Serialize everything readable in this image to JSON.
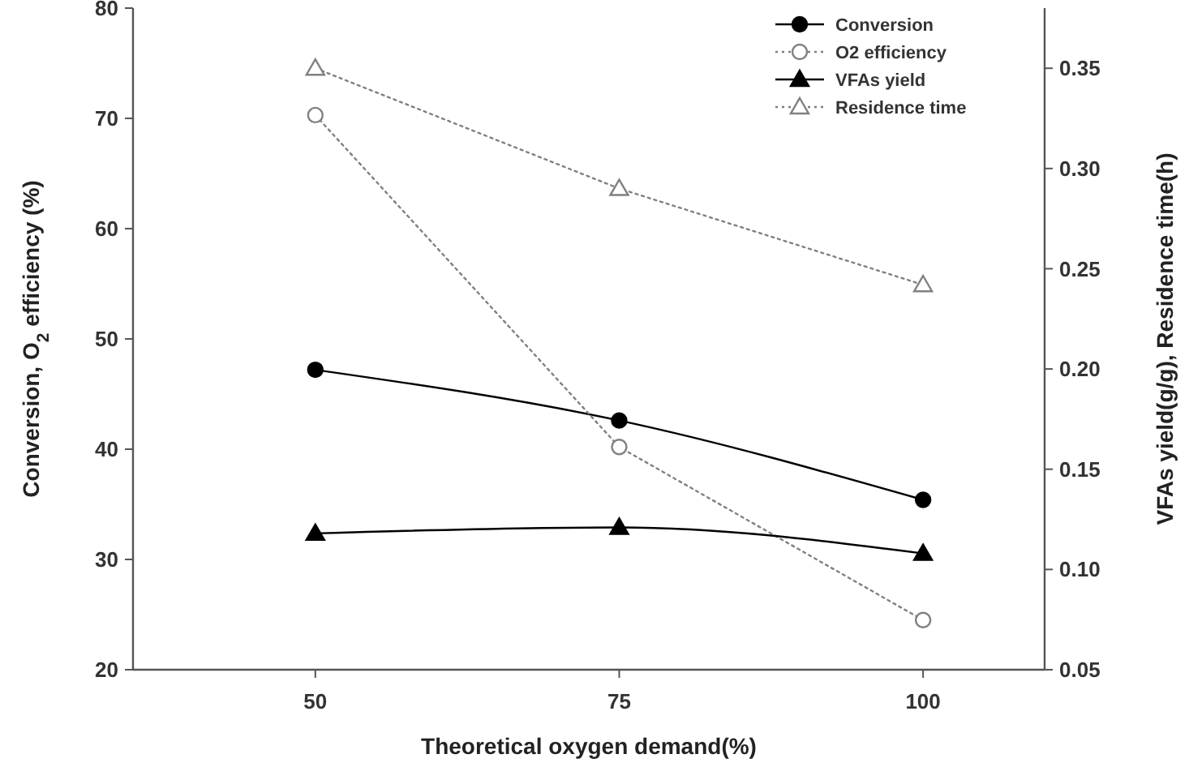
{
  "chart_data": {
    "type": "line",
    "xlabel": "Theoretical oxygen demand(%)",
    "ylabel": "Conversion, O$_{2}$ efficiency (%)",
    "y2label": "VFAs yield(g/g), Residence time(h)",
    "x": [
      50,
      75,
      100
    ],
    "xlim": [
      35,
      110
    ],
    "xticks": [
      50,
      75,
      100
    ],
    "ylim": [
      20,
      80
    ],
    "yticks": [
      20,
      30,
      40,
      50,
      60,
      70,
      80
    ],
    "y2lim": [
      0.05,
      0.38
    ],
    "y2ticks": [
      0.05,
      {
        "value": 0.1,
        "label": "0.10"
      },
      0.15,
      {
        "value": 0.2,
        "label": "0.20"
      },
      0.25,
      {
        "value": 0.3,
        "label": "0.30"
      },
      0.35
    ],
    "legend": "top right",
    "grid": false,
    "series": [
      {
        "name": "Conversion",
        "color": "#000000",
        "values": [
          47.2,
          42.6,
          35.4
        ],
        "marker": "circle",
        "line_style": "solid"
      },
      {
        "name": "O2 efficiency",
        "color": "#808080",
        "values": [
          70.3,
          40.2,
          24.5
        ],
        "marker": "circle",
        "line_style": "dotted"
      },
      {
        "name": "VFAs yield",
        "color": "#000000",
        "values": [
          0.118,
          0.121,
          0.108
        ],
        "axis": "y2",
        "marker": "triangle",
        "line_style": "solid"
      },
      {
        "name": "Residence time",
        "color": "#808080",
        "values": [
          0.35,
          0.29,
          0.242
        ],
        "axis": "y2",
        "marker": "triangle",
        "line_style": "dotted"
      }
    ]
  }
}
